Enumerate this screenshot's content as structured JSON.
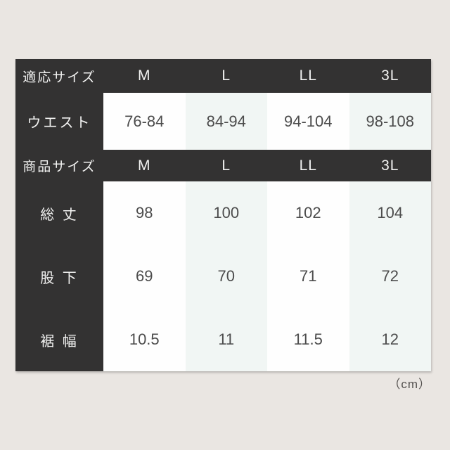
{
  "colors": {
    "background": "#eae6e2",
    "header_bg": "#333232",
    "header_text": "#f2f2f1",
    "cell_white": "#fefefe",
    "cell_tint": "#f1f6f4",
    "data_text": "#4c4c4c"
  },
  "unit_note": "（cm）",
  "table": {
    "applicable": {
      "label": "適応サイズ",
      "sizes": [
        "M",
        "L",
        "LL",
        "3L"
      ]
    },
    "product": {
      "label": "商品サイズ",
      "sizes": [
        "M",
        "L",
        "LL",
        "3L"
      ]
    },
    "rows": [
      {
        "label": "ウエスト",
        "values": [
          "76-84",
          "84-94",
          "94-104",
          "98-108"
        ]
      },
      {
        "label": "総 丈",
        "values": [
          "98",
          "100",
          "102",
          "104"
        ]
      },
      {
        "label": "股 下",
        "values": [
          "69",
          "70",
          "71",
          "72"
        ]
      },
      {
        "label": "裾 幅",
        "values": [
          "10.5",
          "11",
          "11.5",
          "12"
        ]
      }
    ]
  }
}
